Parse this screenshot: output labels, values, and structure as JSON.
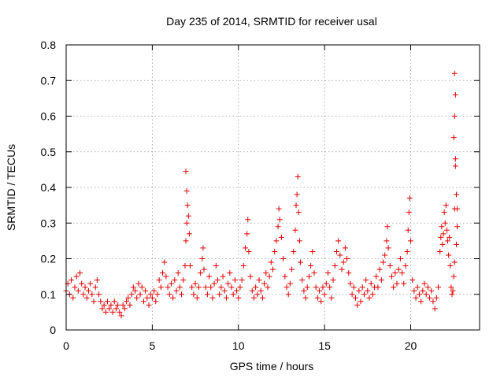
{
  "chart_data": {
    "type": "scatter",
    "title": "Day 235 of 2014, SRMTID for receiver usal",
    "xlabel": "GPS time / hours",
    "ylabel": "SRMTID / TECUs",
    "xlim": [
      0,
      24
    ],
    "ylim": [
      0,
      0.8
    ],
    "xticks": [
      0,
      5,
      10,
      15,
      20
    ],
    "xtick_labels": [
      "0",
      "5",
      "10",
      "15",
      "20"
    ],
    "yticks": [
      0,
      0.1,
      0.2,
      0.3,
      0.4,
      0.5,
      0.6,
      0.7,
      0.8
    ],
    "ytick_labels": [
      "0",
      "0.1",
      "0.2",
      "0.3",
      "0.4",
      "0.5",
      "0.6",
      "0.7",
      "0.8"
    ],
    "grid": true,
    "marker": "+",
    "marker_color": "#e00000",
    "series": [
      {
        "name": "SRMTID",
        "points": [
          [
            0.0,
            0.11
          ],
          [
            0.1,
            0.13
          ],
          [
            0.2,
            0.1
          ],
          [
            0.3,
            0.14
          ],
          [
            0.4,
            0.09
          ],
          [
            0.5,
            0.12
          ],
          [
            0.6,
            0.15
          ],
          [
            0.7,
            0.11
          ],
          [
            0.8,
            0.16
          ],
          [
            0.9,
            0.13
          ],
          [
            1.0,
            0.1
          ],
          [
            1.1,
            0.12
          ],
          [
            1.2,
            0.09
          ],
          [
            1.3,
            0.11
          ],
          [
            1.4,
            0.13
          ],
          [
            1.5,
            0.1
          ],
          [
            1.6,
            0.08
          ],
          [
            1.7,
            0.12
          ],
          [
            1.8,
            0.14
          ],
          [
            1.9,
            0.1
          ],
          [
            2.0,
            0.08
          ],
          [
            2.1,
            0.06
          ],
          [
            2.2,
            0.07
          ],
          [
            2.3,
            0.05
          ],
          [
            2.4,
            0.08
          ],
          [
            2.5,
            0.06
          ],
          [
            2.6,
            0.07
          ],
          [
            2.7,
            0.05
          ],
          [
            2.8,
            0.08
          ],
          [
            2.9,
            0.06
          ],
          [
            3.0,
            0.07
          ],
          [
            3.1,
            0.05
          ],
          [
            3.2,
            0.04
          ],
          [
            3.3,
            0.07
          ],
          [
            3.4,
            0.06
          ],
          [
            3.5,
            0.08
          ],
          [
            3.6,
            0.09
          ],
          [
            3.7,
            0.07
          ],
          [
            3.8,
            0.1
          ],
          [
            3.9,
            0.12
          ],
          [
            4.0,
            0.11
          ],
          [
            4.1,
            0.09
          ],
          [
            4.2,
            0.13
          ],
          [
            4.3,
            0.1
          ],
          [
            4.4,
            0.12
          ],
          [
            4.5,
            0.08
          ],
          [
            4.6,
            0.11
          ],
          [
            4.7,
            0.09
          ],
          [
            4.8,
            0.07
          ],
          [
            4.9,
            0.1
          ],
          [
            5.0,
            0.09
          ],
          [
            5.1,
            0.11
          ],
          [
            5.2,
            0.08
          ],
          [
            5.3,
            0.1
          ],
          [
            5.4,
            0.14
          ],
          [
            5.5,
            0.12
          ],
          [
            5.6,
            0.16
          ],
          [
            5.7,
            0.19
          ],
          [
            5.8,
            0.15
          ],
          [
            5.9,
            0.12
          ],
          [
            6.0,
            0.1
          ],
          [
            6.1,
            0.13
          ],
          [
            6.2,
            0.09
          ],
          [
            6.3,
            0.14
          ],
          [
            6.4,
            0.11
          ],
          [
            6.5,
            0.16
          ],
          [
            6.6,
            0.12
          ],
          [
            6.7,
            0.1
          ],
          [
            6.8,
            0.14
          ],
          [
            6.9,
            0.18
          ],
          [
            6.95,
            0.25
          ],
          [
            7.0,
            0.3
          ],
          [
            7.05,
            0.35
          ],
          [
            7.0,
            0.39
          ],
          [
            6.95,
            0.445
          ],
          [
            7.1,
            0.32
          ],
          [
            7.15,
            0.27
          ],
          [
            7.2,
            0.18
          ],
          [
            7.3,
            0.12
          ],
          [
            7.4,
            0.1
          ],
          [
            7.5,
            0.13
          ],
          [
            7.6,
            0.09
          ],
          [
            7.7,
            0.12
          ],
          [
            7.8,
            0.16
          ],
          [
            7.9,
            0.2
          ],
          [
            7.95,
            0.23
          ],
          [
            8.0,
            0.17
          ],
          [
            8.1,
            0.12
          ],
          [
            8.2,
            0.1
          ],
          [
            8.3,
            0.15
          ],
          [
            8.4,
            0.12
          ],
          [
            8.5,
            0.09
          ],
          [
            8.6,
            0.13
          ],
          [
            8.7,
            0.18
          ],
          [
            8.8,
            0.14
          ],
          [
            8.9,
            0.1
          ],
          [
            9.0,
            0.12
          ],
          [
            9.1,
            0.15
          ],
          [
            9.2,
            0.11
          ],
          [
            9.3,
            0.09
          ],
          [
            9.4,
            0.13
          ],
          [
            9.5,
            0.16
          ],
          [
            9.6,
            0.12
          ],
          [
            9.7,
            0.1
          ],
          [
            9.8,
            0.14
          ],
          [
            9.9,
            0.11
          ],
          [
            10.0,
            0.09
          ],
          [
            10.1,
            0.12
          ],
          [
            10.2,
            0.14
          ],
          [
            10.3,
            0.18
          ],
          [
            10.4,
            0.23
          ],
          [
            10.5,
            0.27
          ],
          [
            10.55,
            0.31
          ],
          [
            10.6,
            0.22
          ],
          [
            10.7,
            0.15
          ],
          [
            10.8,
            0.11
          ],
          [
            10.9,
            0.09
          ],
          [
            11.0,
            0.12
          ],
          [
            11.1,
            0.1
          ],
          [
            11.2,
            0.14
          ],
          [
            11.3,
            0.11
          ],
          [
            11.4,
            0.09
          ],
          [
            11.5,
            0.13
          ],
          [
            11.6,
            0.16
          ],
          [
            11.7,
            0.12
          ],
          [
            11.8,
            0.15
          ],
          [
            11.9,
            0.19
          ],
          [
            12.0,
            0.17
          ],
          [
            12.1,
            0.22
          ],
          [
            12.2,
            0.25
          ],
          [
            12.3,
            0.29
          ],
          [
            12.35,
            0.34
          ],
          [
            12.4,
            0.31
          ],
          [
            12.5,
            0.26
          ],
          [
            12.6,
            0.2
          ],
          [
            12.7,
            0.15
          ],
          [
            12.8,
            0.12
          ],
          [
            12.9,
            0.1
          ],
          [
            13.0,
            0.13
          ],
          [
            13.1,
            0.17
          ],
          [
            13.2,
            0.22
          ],
          [
            13.3,
            0.28
          ],
          [
            13.35,
            0.35
          ],
          [
            13.4,
            0.38
          ],
          [
            13.45,
            0.43
          ],
          [
            13.5,
            0.33
          ],
          [
            13.55,
            0.25
          ],
          [
            13.6,
            0.19
          ],
          [
            13.7,
            0.14
          ],
          [
            13.8,
            0.11
          ],
          [
            13.9,
            0.09
          ],
          [
            14.0,
            0.12
          ],
          [
            14.1,
            0.15
          ],
          [
            14.2,
            0.18
          ],
          [
            14.3,
            0.22
          ],
          [
            14.4,
            0.16
          ],
          [
            14.5,
            0.12
          ],
          [
            14.6,
            0.09
          ],
          [
            14.7,
            0.11
          ],
          [
            14.8,
            0.08
          ],
          [
            14.9,
            0.12
          ],
          [
            15.0,
            0.1
          ],
          [
            15.1,
            0.13
          ],
          [
            15.2,
            0.16
          ],
          [
            15.3,
            0.12
          ],
          [
            15.4,
            0.09
          ],
          [
            15.5,
            0.14
          ],
          [
            15.6,
            0.18
          ],
          [
            15.7,
            0.22
          ],
          [
            15.8,
            0.25
          ],
          [
            15.9,
            0.21
          ],
          [
            16.0,
            0.17
          ],
          [
            16.1,
            0.19
          ],
          [
            16.2,
            0.23
          ],
          [
            16.3,
            0.2
          ],
          [
            16.4,
            0.16
          ],
          [
            16.5,
            0.13
          ],
          [
            16.6,
            0.1
          ],
          [
            16.7,
            0.12
          ],
          [
            16.8,
            0.09
          ],
          [
            16.9,
            0.07
          ],
          [
            17.0,
            0.11
          ],
          [
            17.1,
            0.08
          ],
          [
            17.2,
            0.12
          ],
          [
            17.3,
            0.1
          ],
          [
            17.4,
            0.14
          ],
          [
            17.5,
            0.11
          ],
          [
            17.6,
            0.09
          ],
          [
            17.7,
            0.13
          ],
          [
            17.8,
            0.1
          ],
          [
            17.9,
            0.12
          ],
          [
            18.0,
            0.15
          ],
          [
            18.1,
            0.12
          ],
          [
            18.2,
            0.17
          ],
          [
            18.3,
            0.14
          ],
          [
            18.4,
            0.19
          ],
          [
            18.5,
            0.21
          ],
          [
            18.6,
            0.25
          ],
          [
            18.65,
            0.29
          ],
          [
            18.7,
            0.23
          ],
          [
            18.8,
            0.18
          ],
          [
            18.9,
            0.15
          ],
          [
            19.0,
            0.12
          ],
          [
            19.1,
            0.16
          ],
          [
            19.2,
            0.13
          ],
          [
            19.3,
            0.17
          ],
          [
            19.4,
            0.2
          ],
          [
            19.5,
            0.16
          ],
          [
            19.6,
            0.13
          ],
          [
            19.7,
            0.18
          ],
          [
            19.8,
            0.22
          ],
          [
            19.85,
            0.28
          ],
          [
            19.9,
            0.33
          ],
          [
            19.95,
            0.37
          ],
          [
            20.0,
            0.25
          ],
          [
            20.1,
            0.14
          ],
          [
            20.2,
            0.11
          ],
          [
            20.3,
            0.09
          ],
          [
            20.4,
            0.12
          ],
          [
            20.5,
            0.1
          ],
          [
            20.6,
            0.08
          ],
          [
            20.7,
            0.11
          ],
          [
            20.8,
            0.13
          ],
          [
            20.9,
            0.1
          ],
          [
            21.0,
            0.12
          ],
          [
            21.1,
            0.09
          ],
          [
            21.2,
            0.11
          ],
          [
            21.3,
            0.08
          ],
          [
            21.4,
            0.06
          ],
          [
            21.5,
            0.09
          ],
          [
            21.6,
            0.12
          ],
          [
            21.7,
            0.22
          ],
          [
            21.75,
            0.26
          ],
          [
            21.8,
            0.29
          ],
          [
            21.85,
            0.24
          ],
          [
            21.9,
            0.27
          ],
          [
            21.95,
            0.33
          ],
          [
            22.0,
            0.3
          ],
          [
            22.05,
            0.35
          ],
          [
            22.1,
            0.28
          ],
          [
            22.15,
            0.25
          ],
          [
            22.2,
            0.21
          ],
          [
            22.25,
            0.26
          ],
          [
            22.3,
            0.18
          ],
          [
            22.35,
            0.12
          ],
          [
            22.4,
            0.1
          ],
          [
            22.45,
            0.11
          ],
          [
            22.5,
            0.15
          ],
          [
            22.55,
            0.34
          ],
          [
            22.6,
            0.48
          ],
          [
            22.5,
            0.54
          ],
          [
            22.55,
            0.6
          ],
          [
            22.6,
            0.66
          ],
          [
            22.55,
            0.72
          ],
          [
            22.65,
            0.38
          ],
          [
            22.7,
            0.29
          ],
          [
            22.65,
            0.24
          ],
          [
            22.6,
            0.46
          ],
          [
            22.7,
            0.34
          ],
          [
            22.55,
            0.19
          ]
        ]
      }
    ]
  }
}
